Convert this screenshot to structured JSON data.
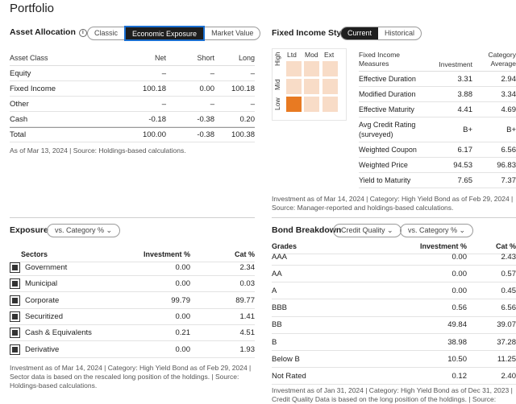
{
  "page_title": "Portfolio",
  "asset_allocation": {
    "title": "Asset Allocation",
    "views": [
      "Classic",
      "Economic Exposure",
      "Market Value"
    ],
    "active_view": "Economic Exposure",
    "headers": [
      "Asset Class",
      "Net",
      "Short",
      "Long"
    ],
    "rows": [
      {
        "name": "Equity",
        "net": "–",
        "short": "–",
        "long": "–"
      },
      {
        "name": "Fixed Income",
        "net": "100.18",
        "short": "0.00",
        "long": "100.18"
      },
      {
        "name": "Other",
        "net": "–",
        "short": "–",
        "long": "–"
      },
      {
        "name": "Cash",
        "net": "-0.18",
        "short": "-0.38",
        "long": "0.20"
      },
      {
        "name": "Total",
        "net": "100.00",
        "short": "-0.38",
        "long": "100.38"
      }
    ],
    "footnote": "As of Mar 13, 2024 | Source: Holdings-based calculations."
  },
  "fixed_income_style": {
    "title": "Fixed Income Style",
    "views": [
      "Current",
      "Historical"
    ],
    "active_view": "Current",
    "grid_cols": [
      "Ltd",
      "Mod",
      "Ext"
    ],
    "grid_rows": [
      "High",
      "Mid",
      "Low"
    ],
    "highlight": {
      "row": "Low",
      "col": "Ltd"
    },
    "measures_header": "Fixed Income Measures",
    "investment_header": "Investment",
    "category_header": "Category Average",
    "measures": [
      {
        "name": "Effective Duration",
        "investment": "3.31",
        "category": "2.94"
      },
      {
        "name": "Modified Duration",
        "investment": "3.88",
        "category": "3.34"
      },
      {
        "name": "Effective Maturity",
        "investment": "4.41",
        "category": "4.69"
      },
      {
        "name": "Avg Credit Rating (surveyed)",
        "investment": "B+",
        "category": "B+"
      },
      {
        "name": "Weighted Coupon",
        "investment": "6.17",
        "category": "6.56"
      },
      {
        "name": "Weighted Price",
        "investment": "94.53",
        "category": "96.83"
      },
      {
        "name": "Yield to Maturity",
        "investment": "7.65",
        "category": "7.37"
      }
    ],
    "footnote": "Investment as of Mar 14, 2024 | Category: High Yield Bond as of Feb 29, 2024 | Source: Manager-reported and holdings-based calculations."
  },
  "exposure": {
    "title": "Exposure",
    "dropdown": "vs. Category %",
    "headers": [
      "Sectors",
      "Investment %",
      "Cat %"
    ],
    "rows": [
      {
        "name": "Government",
        "icon": "government-icon",
        "investment": "0.00",
        "cat": "2.34"
      },
      {
        "name": "Municipal",
        "icon": "municipal-icon",
        "investment": "0.00",
        "cat": "0.03"
      },
      {
        "name": "Corporate",
        "icon": "corporate-icon",
        "investment": "99.79",
        "cat": "89.77"
      },
      {
        "name": "Securitized",
        "icon": "securitized-icon",
        "investment": "0.00",
        "cat": "1.41"
      },
      {
        "name": "Cash & Equivalents",
        "icon": "cash-icon",
        "investment": "0.21",
        "cat": "4.51"
      },
      {
        "name": "Derivative",
        "icon": "derivative-icon",
        "investment": "0.00",
        "cat": "1.93"
      }
    ],
    "footnote": "Investment as of Mar 14, 2024 | Category: High Yield Bond as of Feb 29, 2024 | Sector data is based on the rescaled long position of the holdings. | Source: Holdings-based calculations."
  },
  "bond_breakdown": {
    "title": "Bond Breakdown",
    "dropdown1": "Credit Quality",
    "dropdown2": "vs. Category %",
    "headers": [
      "Grades",
      "Investment %",
      "Cat %"
    ],
    "rows": [
      {
        "name": "AAA",
        "investment": "0.00",
        "cat": "2.43"
      },
      {
        "name": "AA",
        "investment": "0.00",
        "cat": "0.57"
      },
      {
        "name": "A",
        "investment": "0.00",
        "cat": "0.45"
      },
      {
        "name": "BBB",
        "investment": "0.56",
        "cat": "6.56"
      },
      {
        "name": "BB",
        "investment": "49.84",
        "cat": "39.07"
      },
      {
        "name": "B",
        "investment": "38.98",
        "cat": "37.28"
      },
      {
        "name": "Below B",
        "investment": "10.50",
        "cat": "11.25"
      },
      {
        "name": "Not Rated",
        "investment": "0.12",
        "cat": "2.40"
      }
    ],
    "footnote": "Investment as of Jan 31, 2024 | Category: High Yield Bond as of Dec 31, 2023 | Credit Quality Data is based on the long position of the holdings. | Source: Manager-reported."
  }
}
